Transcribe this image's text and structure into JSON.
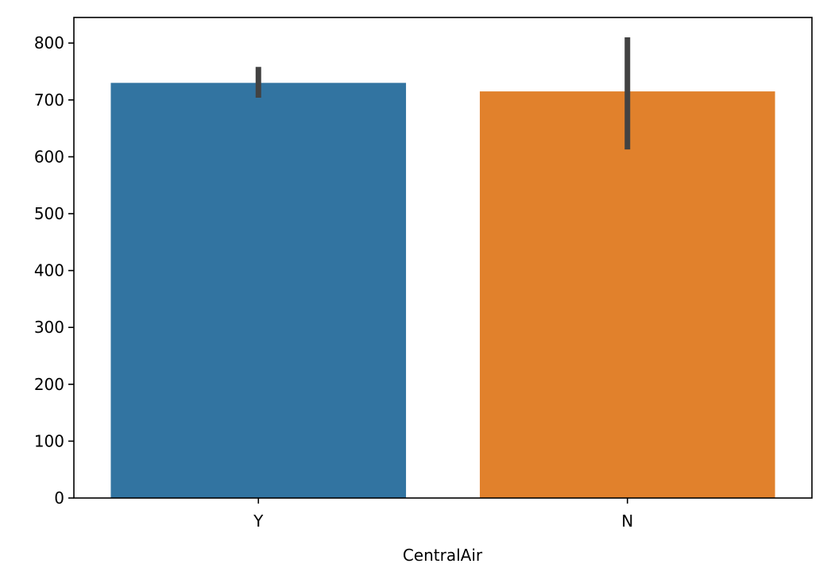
{
  "chart_data": {
    "type": "bar",
    "title": "",
    "xlabel": "CentralAir",
    "ylabel": "",
    "categories": [
      "Y",
      "N"
    ],
    "values": [
      730,
      715
    ],
    "error_bars": [
      {
        "low": 704,
        "high": 758
      },
      {
        "low": 613,
        "high": 810
      }
    ],
    "colors": [
      "#3274a1",
      "#e1812c"
    ],
    "error_bar_color": "#424242",
    "ylim": [
      0,
      845
    ],
    "yticks": [
      0,
      100,
      200,
      300,
      400,
      500,
      600,
      700,
      800
    ],
    "grid": false,
    "legend": "none"
  }
}
